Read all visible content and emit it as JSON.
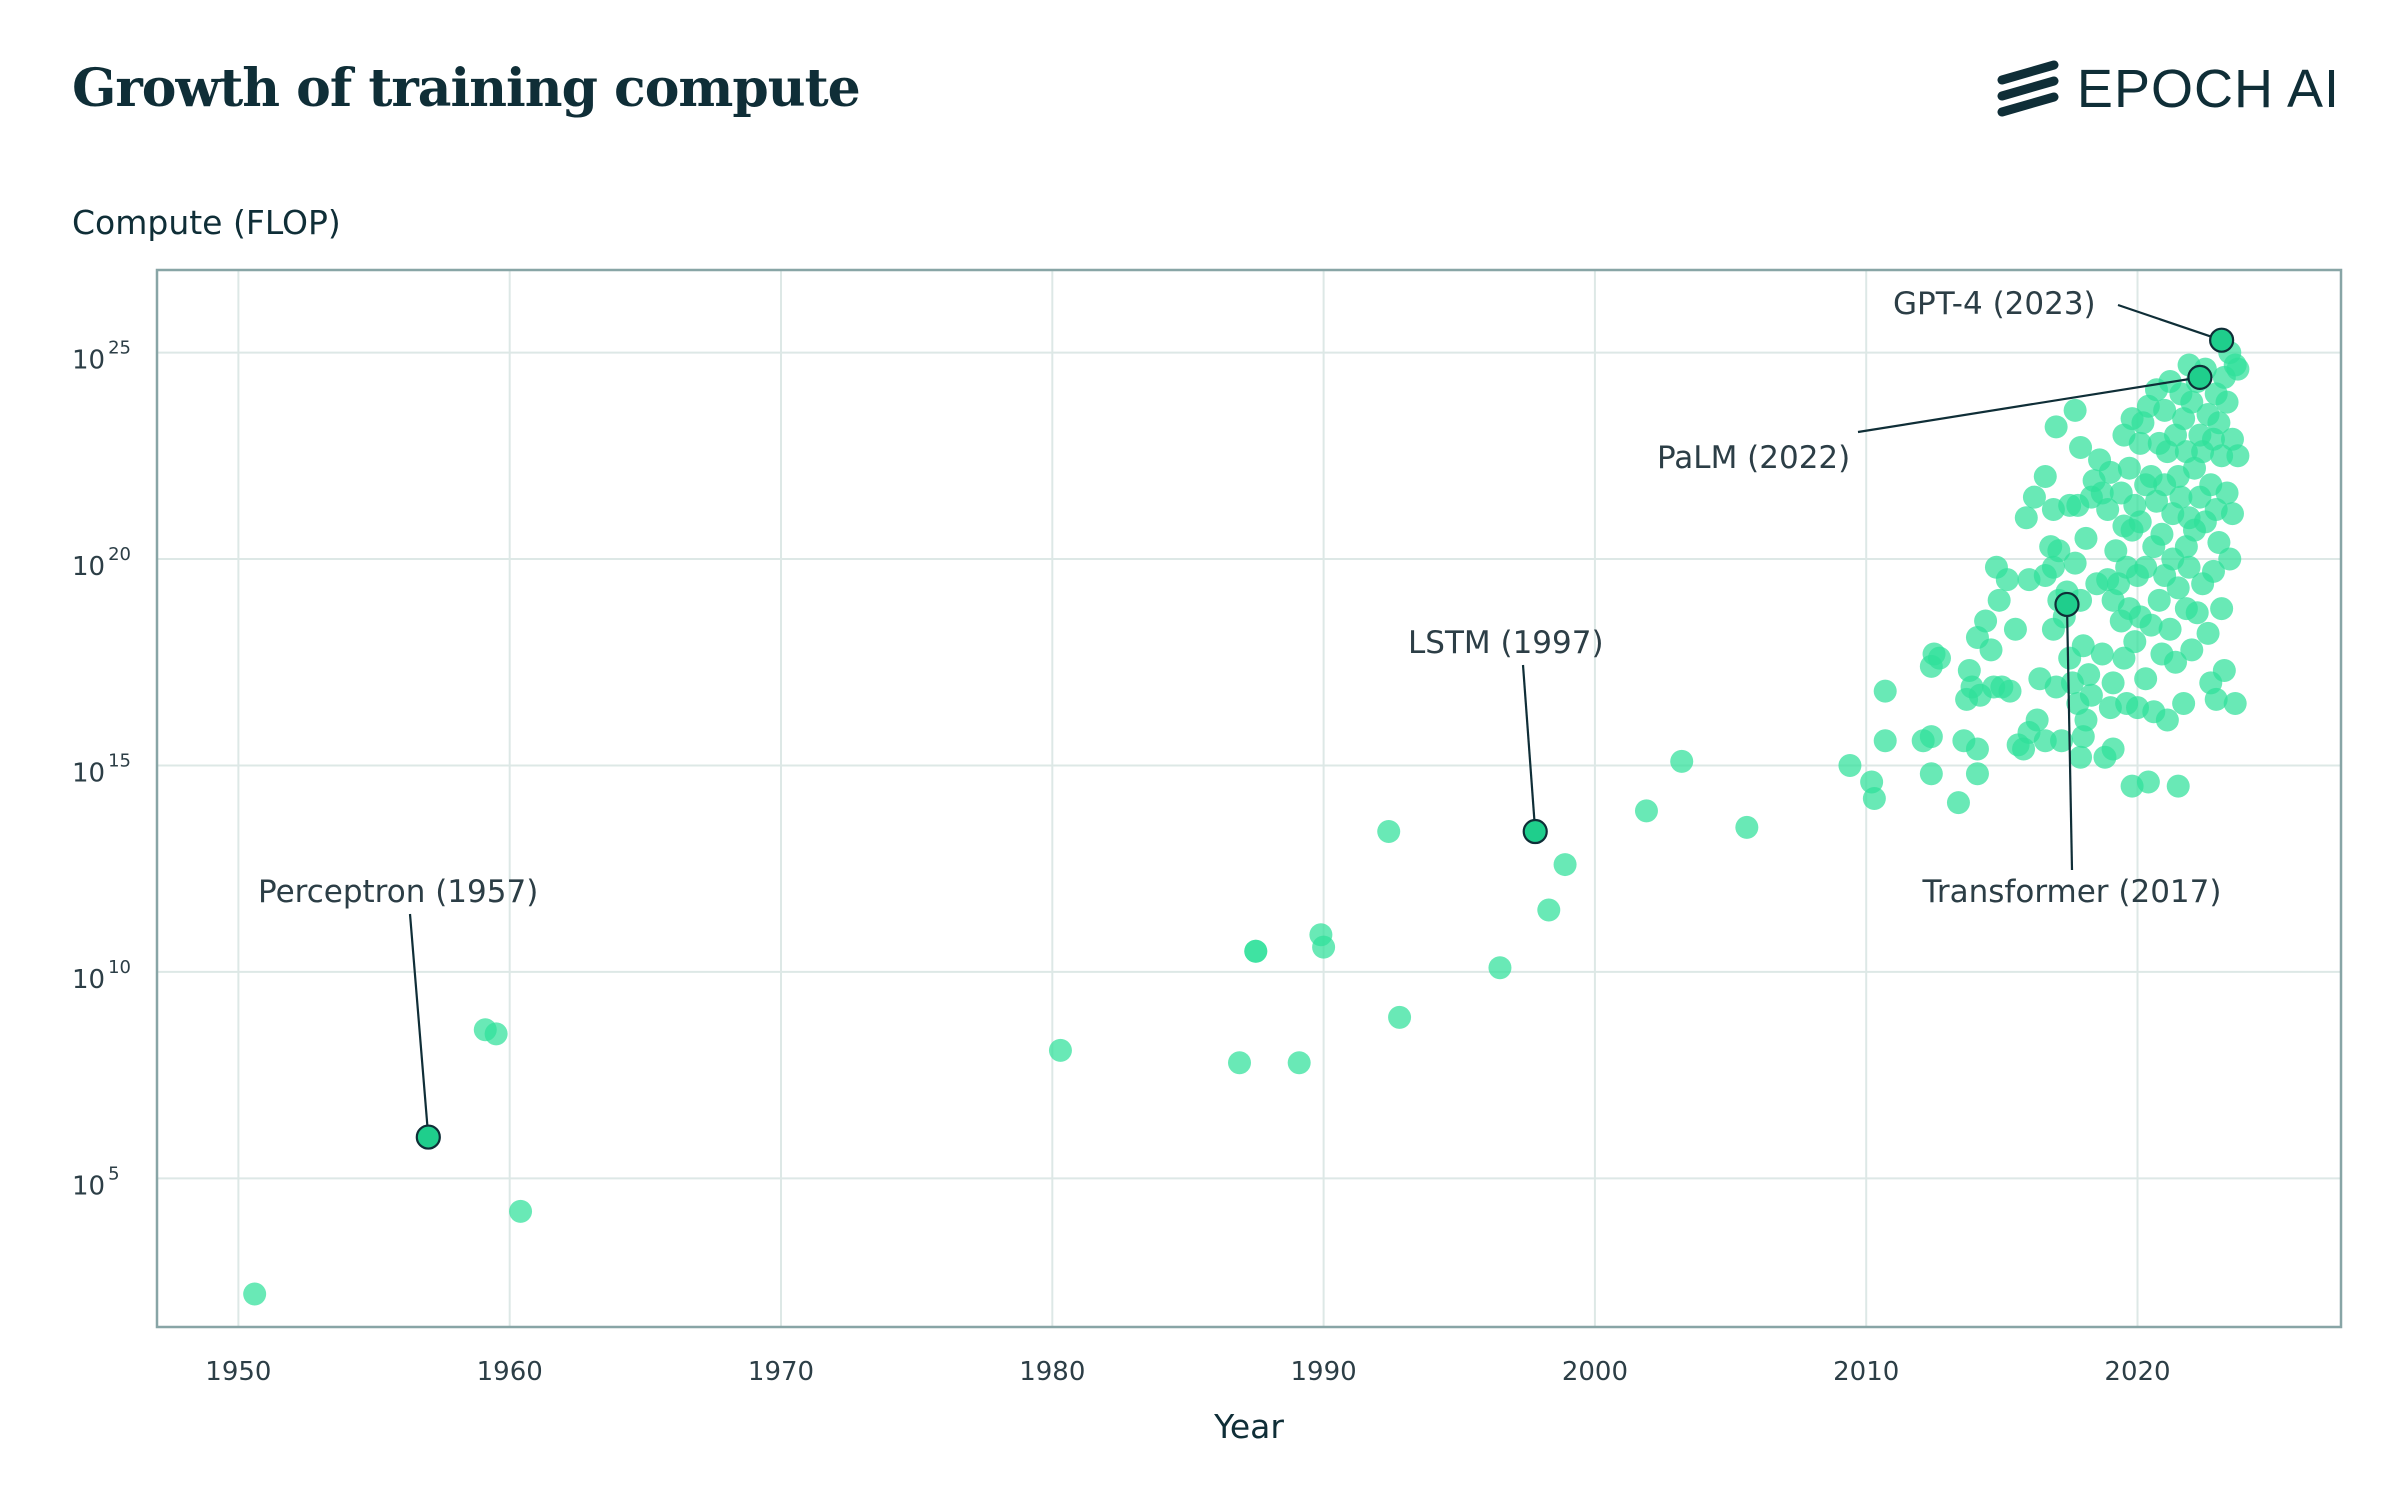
{
  "header": {
    "title": "Growth of training compute",
    "logo_text": "EPOCH AI"
  },
  "colors": {
    "point": "#2fe09a",
    "highlight": "#1fce8c",
    "grid": "#dde8e6",
    "axis": "#88a5a6",
    "text": "#0f2e37"
  },
  "chart_data": {
    "type": "scatter",
    "ylabel": "Compute (FLOP)",
    "xlabel": "Year",
    "y_scale": "log",
    "xlim": [
      1947,
      2027.5
    ],
    "ylim_log10": [
      1.4,
      27.0
    ],
    "x_ticks": [
      "1950",
      "1960",
      "1970",
      "1980",
      "1990",
      "2000",
      "2010",
      "2020"
    ],
    "y_ticks": [
      {
        "base": "10",
        "exp": "5",
        "log10": 5
      },
      {
        "base": "10",
        "exp": "10",
        "log10": 10
      },
      {
        "base": "10",
        "exp": "15",
        "log10": 15
      },
      {
        "base": "10",
        "exp": "20",
        "log10": 20
      },
      {
        "base": "10",
        "exp": "25",
        "log10": 25
      }
    ],
    "grid": true,
    "highlighted": [
      {
        "label": "Perceptron (1957)",
        "x": 1957.0,
        "log10": 6.0
      },
      {
        "label": "LSTM (1997)",
        "x": 1997.8,
        "log10": 13.4
      },
      {
        "label": "Transformer (2017)",
        "x": 2017.4,
        "log10": 18.9
      },
      {
        "label": "PaLM (2022)",
        "x": 2022.3,
        "log10": 24.4
      },
      {
        "label": "GPT-4 (2023)",
        "x": 2023.1,
        "log10": 25.3
      }
    ],
    "points_log10": [
      [
        1950.6,
        2.2
      ],
      [
        1959.1,
        8.6
      ],
      [
        1959.5,
        8.5
      ],
      [
        1960.4,
        4.2
      ],
      [
        1980.3,
        8.1
      ],
      [
        1986.9,
        7.8
      ],
      [
        1987.5,
        10.5
      ],
      [
        1987.5,
        10.5
      ],
      [
        1989.1,
        7.8
      ],
      [
        1989.9,
        10.9
      ],
      [
        1990.0,
        10.6
      ],
      [
        1992.4,
        13.4
      ],
      [
        1992.8,
        8.9
      ],
      [
        1996.5,
        10.1
      ],
      [
        1998.3,
        11.5
      ],
      [
        1998.9,
        12.6
      ],
      [
        2001.9,
        13.9
      ],
      [
        2003.2,
        15.1
      ],
      [
        2005.6,
        13.5
      ],
      [
        2009.4,
        15.0
      ],
      [
        2010.2,
        14.6
      ],
      [
        2010.3,
        14.2
      ],
      [
        2010.7,
        15.6
      ],
      [
        2010.7,
        16.8
      ],
      [
        2012.1,
        15.6
      ],
      [
        2012.4,
        15.7
      ],
      [
        2012.4,
        14.8
      ],
      [
        2012.4,
        17.4
      ],
      [
        2012.5,
        17.7
      ],
      [
        2012.7,
        17.6
      ],
      [
        2013.4,
        14.1
      ],
      [
        2013.6,
        15.6
      ],
      [
        2013.7,
        16.6
      ],
      [
        2013.8,
        17.3
      ],
      [
        2013.9,
        16.9
      ],
      [
        2014.1,
        15.4
      ],
      [
        2014.1,
        14.8
      ],
      [
        2014.1,
        18.1
      ],
      [
        2014.2,
        16.7
      ],
      [
        2014.4,
        18.5
      ],
      [
        2014.6,
        17.8
      ],
      [
        2014.7,
        16.9
      ],
      [
        2014.8,
        19.8
      ],
      [
        2014.9,
        19.0
      ],
      [
        2015.0,
        16.9
      ],
      [
        2015.2,
        19.5
      ],
      [
        2015.3,
        16.8
      ],
      [
        2015.5,
        18.3
      ],
      [
        2015.6,
        15.5
      ],
      [
        2015.8,
        15.4
      ],
      [
        2015.9,
        21.0
      ],
      [
        2016.0,
        19.5
      ],
      [
        2016.0,
        15.8
      ],
      [
        2016.2,
        21.5
      ],
      [
        2016.3,
        16.1
      ],
      [
        2016.4,
        17.1
      ],
      [
        2016.6,
        19.6
      ],
      [
        2016.6,
        15.6
      ],
      [
        2016.6,
        22.0
      ],
      [
        2016.8,
        20.3
      ],
      [
        2016.9,
        18.3
      ],
      [
        2016.9,
        21.2
      ],
      [
        2016.9,
        19.8
      ],
      [
        2017.0,
        16.9
      ],
      [
        2017.0,
        23.2
      ],
      [
        2017.1,
        20.2
      ],
      [
        2017.1,
        19.0
      ],
      [
        2017.2,
        15.6
      ],
      [
        2017.3,
        18.6
      ],
      [
        2017.4,
        19.2
      ],
      [
        2017.5,
        21.3
      ],
      [
        2017.5,
        17.6
      ],
      [
        2017.6,
        17.0
      ],
      [
        2017.7,
        23.6
      ],
      [
        2017.7,
        19.9
      ],
      [
        2017.8,
        16.5
      ],
      [
        2017.8,
        21.3
      ],
      [
        2017.9,
        15.2
      ],
      [
        2017.9,
        22.7
      ],
      [
        2017.9,
        19.0
      ],
      [
        2018.0,
        17.9
      ],
      [
        2018.0,
        15.7
      ],
      [
        2018.1,
        16.1
      ],
      [
        2018.1,
        20.5
      ],
      [
        2018.2,
        17.2
      ],
      [
        2018.3,
        16.7
      ],
      [
        2018.3,
        21.5
      ],
      [
        2018.4,
        21.9
      ],
      [
        2018.5,
        19.4
      ],
      [
        2018.6,
        22.4
      ],
      [
        2018.7,
        21.6
      ],
      [
        2018.7,
        17.7
      ],
      [
        2018.8,
        15.2
      ],
      [
        2018.9,
        21.2
      ],
      [
        2018.9,
        19.5
      ],
      [
        2019.0,
        16.4
      ],
      [
        2019.0,
        22.1
      ],
      [
        2019.1,
        19.0
      ],
      [
        2019.1,
        17.0
      ],
      [
        2019.1,
        15.4
      ],
      [
        2019.2,
        20.2
      ],
      [
        2019.3,
        19.4
      ],
      [
        2019.4,
        21.6
      ],
      [
        2019.4,
        18.5
      ],
      [
        2019.5,
        20.8
      ],
      [
        2019.5,
        17.6
      ],
      [
        2019.5,
        23.0
      ],
      [
        2019.6,
        16.5
      ],
      [
        2019.6,
        19.8
      ],
      [
        2019.7,
        22.2
      ],
      [
        2019.7,
        18.8
      ],
      [
        2019.8,
        20.7
      ],
      [
        2019.8,
        14.5
      ],
      [
        2019.8,
        23.4
      ],
      [
        2019.9,
        18.0
      ],
      [
        2019.9,
        21.3
      ],
      [
        2020.0,
        19.6
      ],
      [
        2020.0,
        16.4
      ],
      [
        2020.1,
        22.8
      ],
      [
        2020.1,
        20.9
      ],
      [
        2020.1,
        18.6
      ],
      [
        2020.2,
        23.3
      ],
      [
        2020.3,
        17.1
      ],
      [
        2020.3,
        21.8
      ],
      [
        2020.3,
        19.8
      ],
      [
        2020.4,
        14.6
      ],
      [
        2020.4,
        23.7
      ],
      [
        2020.5,
        18.4
      ],
      [
        2020.5,
        22.0
      ],
      [
        2020.6,
        20.3
      ],
      [
        2020.6,
        16.3
      ],
      [
        2020.7,
        24.1
      ],
      [
        2020.7,
        21.4
      ],
      [
        2020.8,
        19.0
      ],
      [
        2020.8,
        22.8
      ],
      [
        2020.9,
        17.7
      ],
      [
        2020.9,
        20.6
      ],
      [
        2021.0,
        23.6
      ],
      [
        2021.0,
        21.8
      ],
      [
        2021.0,
        19.6
      ],
      [
        2021.1,
        16.1
      ],
      [
        2021.1,
        22.6
      ],
      [
        2021.2,
        18.3
      ],
      [
        2021.2,
        24.3
      ],
      [
        2021.3,
        21.1
      ],
      [
        2021.3,
        20.0
      ],
      [
        2021.4,
        23.0
      ],
      [
        2021.4,
        17.5
      ],
      [
        2021.5,
        22.0
      ],
      [
        2021.5,
        19.3
      ],
      [
        2021.5,
        14.5
      ],
      [
        2021.6,
        24.0
      ],
      [
        2021.6,
        21.5
      ],
      [
        2021.7,
        16.5
      ],
      [
        2021.7,
        23.4
      ],
      [
        2021.8,
        20.3
      ],
      [
        2021.8,
        18.8
      ],
      [
        2021.8,
        22.6
      ],
      [
        2021.9,
        24.7
      ],
      [
        2021.9,
        21.0
      ],
      [
        2021.9,
        19.8
      ],
      [
        2022.0,
        23.8
      ],
      [
        2022.0,
        17.8
      ],
      [
        2022.1,
        22.2
      ],
      [
        2022.1,
        20.7
      ],
      [
        2022.2,
        24.3
      ],
      [
        2022.2,
        18.7
      ],
      [
        2022.3,
        21.5
      ],
      [
        2022.3,
        23.0
      ],
      [
        2022.4,
        19.4
      ],
      [
        2022.4,
        22.6
      ],
      [
        2022.5,
        24.6
      ],
      [
        2022.5,
        20.9
      ],
      [
        2022.6,
        23.5
      ],
      [
        2022.6,
        18.2
      ],
      [
        2022.7,
        21.8
      ],
      [
        2022.7,
        17.0
      ],
      [
        2022.8,
        22.9
      ],
      [
        2022.8,
        19.7
      ],
      [
        2022.9,
        24.0
      ],
      [
        2022.9,
        21.2
      ],
      [
        2022.9,
        16.6
      ],
      [
        2023.0,
        23.3
      ],
      [
        2023.0,
        20.4
      ],
      [
        2023.1,
        22.5
      ],
      [
        2023.1,
        18.8
      ],
      [
        2023.2,
        24.4
      ],
      [
        2023.2,
        17.3
      ],
      [
        2023.3,
        21.6
      ],
      [
        2023.3,
        23.8
      ],
      [
        2023.4,
        25.0
      ],
      [
        2023.4,
        20.0
      ],
      [
        2023.5,
        22.9
      ],
      [
        2023.5,
        21.1
      ],
      [
        2023.6,
        24.7
      ],
      [
        2023.6,
        16.5
      ],
      [
        2023.7,
        24.6
      ],
      [
        2023.7,
        22.5
      ]
    ]
  }
}
